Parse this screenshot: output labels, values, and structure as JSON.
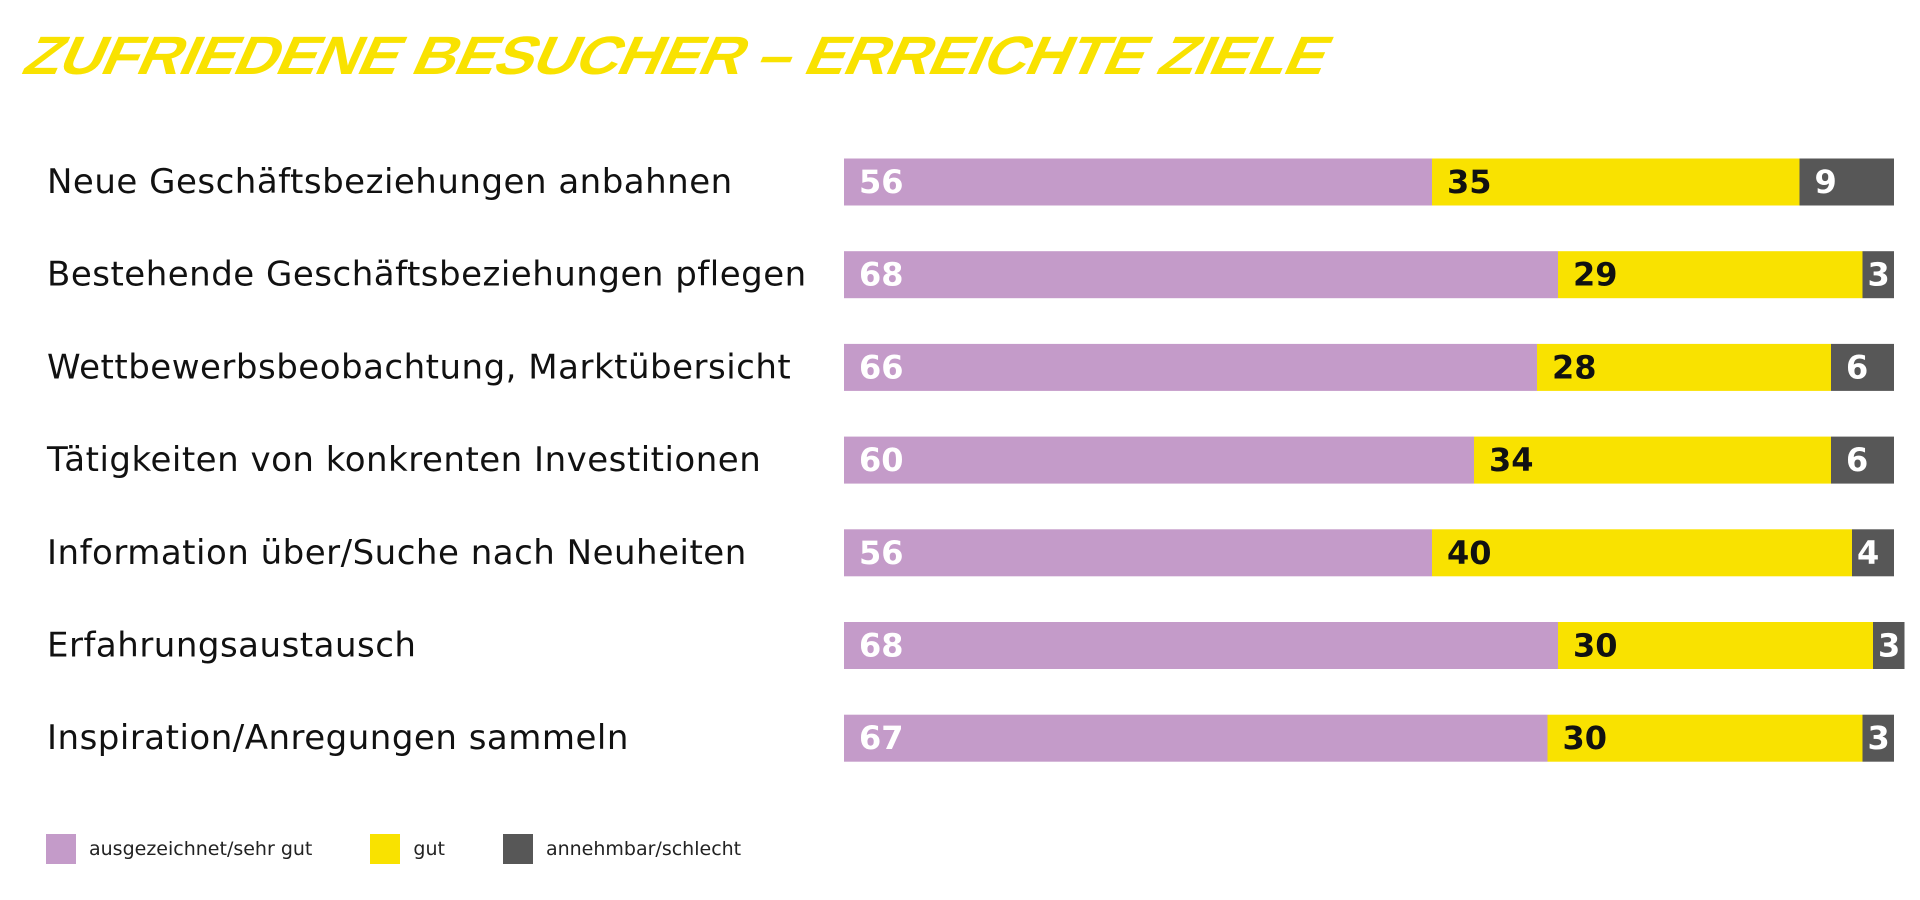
{
  "title": "ZUFRIEDENE BESUCHER – ERREICHTE ZIELE",
  "chart_data": {
    "type": "bar",
    "orientation": "horizontal",
    "stacked": true,
    "title": "ZUFRIEDENE BESUCHER – ERREICHTE ZIELE",
    "xlabel": "",
    "ylabel": "",
    "xlim": [
      0,
      100
    ],
    "categories": [
      "Neue Geschäftsbeziehungen anbahnen",
      "Bestehende Geschäftsbeziehungen pflegen",
      "Wettbewerbsbeobachtung, Marktübersicht",
      "Tätigkeiten von konkrenten Investitionen",
      "Information über/Suche nach Neuheiten",
      "Erfahrungsaustausch",
      "Inspiration/Anregungen sammeln"
    ],
    "series": [
      {
        "name": "ausgezeichnet/sehr gut",
        "color": "#c49bc9",
        "label_color": "#ffffff",
        "values": [
          56,
          68,
          66,
          60,
          56,
          68,
          67
        ]
      },
      {
        "name": "gut",
        "color": "#f9e200",
        "label_color": "#111111",
        "values": [
          35,
          29,
          28,
          34,
          40,
          30,
          30
        ]
      },
      {
        "name": "annehmbar/schlecht",
        "color": "#575757",
        "label_color": "#ffffff",
        "values": [
          9,
          3,
          6,
          6,
          4,
          3,
          3
        ]
      }
    ],
    "legend_position": "bottom-left",
    "grid": false
  }
}
